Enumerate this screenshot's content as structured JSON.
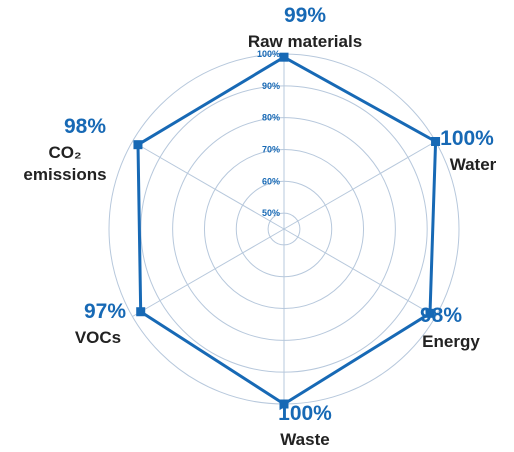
{
  "chart_data": {
    "type": "radar",
    "title": "",
    "categories": [
      "Raw materials",
      "Water",
      "Energy",
      "Waste",
      "VOCs",
      "CO₂ emissions"
    ],
    "category_lines": [
      [
        "Raw materials"
      ],
      [
        "Water"
      ],
      [
        "Energy"
      ],
      [
        "Waste"
      ],
      [
        "VOCs"
      ],
      [
        "CO₂",
        "emissions"
      ]
    ],
    "value_labels": [
      "99%",
      "100%",
      "98%",
      "100%",
      "97%",
      "98%"
    ],
    "series": [
      {
        "values": [
          99,
          100,
          98,
          100,
          97,
          98
        ]
      }
    ],
    "rlim": [
      45,
      100
    ],
    "ticks": [
      50,
      60,
      70,
      80,
      90,
      100
    ],
    "tick_labels": [
      "50%",
      "60%",
      "70%",
      "80%",
      "90%",
      "100%"
    ],
    "grid": true,
    "legend": "none"
  },
  "colors": {
    "series": "#1769b5",
    "grid": "#b7c8dc",
    "label_value": "#1769b5",
    "label_category": "#222222"
  }
}
